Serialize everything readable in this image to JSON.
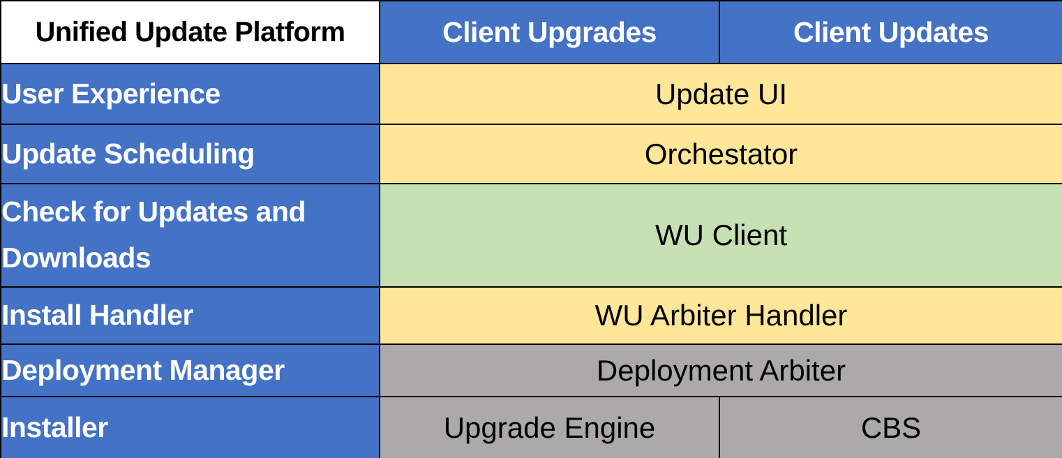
{
  "palette": {
    "blue": "#4472C4",
    "yellow": "#FFE699",
    "green": "#C6E0B4",
    "gray": "#ABA9A9",
    "white": "#FFFFFF",
    "border": "#000000",
    "header_text": "#FFFFFF",
    "cell_text": "#000000"
  },
  "header": {
    "title": "Unified Update Platform",
    "columns": [
      {
        "label": "Client Upgrades"
      },
      {
        "label": "Client Updates"
      }
    ]
  },
  "rows": [
    {
      "label": "User Experience",
      "cells": [
        {
          "text": "Update UI",
          "span": 2,
          "color": "yellow"
        }
      ]
    },
    {
      "label": "Update Scheduling",
      "cells": [
        {
          "text": "Orchestator",
          "span": 2,
          "color": "yellow"
        }
      ]
    },
    {
      "label": "Check for Updates and Downloads",
      "cells": [
        {
          "text": "WU Client",
          "span": 2,
          "color": "green"
        }
      ]
    },
    {
      "label": "Install Handler",
      "cells": [
        {
          "text": "WU Arbiter Handler",
          "span": 2,
          "color": "yellow"
        }
      ]
    },
    {
      "label": "Deployment Manager",
      "cells": [
        {
          "text": "Deployment Arbiter",
          "span": 2,
          "color": "gray"
        }
      ]
    },
    {
      "label": "Installer",
      "cells": [
        {
          "text": "Upgrade Engine",
          "span": 1,
          "color": "gray"
        },
        {
          "text": "CBS",
          "span": 1,
          "color": "gray"
        }
      ]
    }
  ]
}
